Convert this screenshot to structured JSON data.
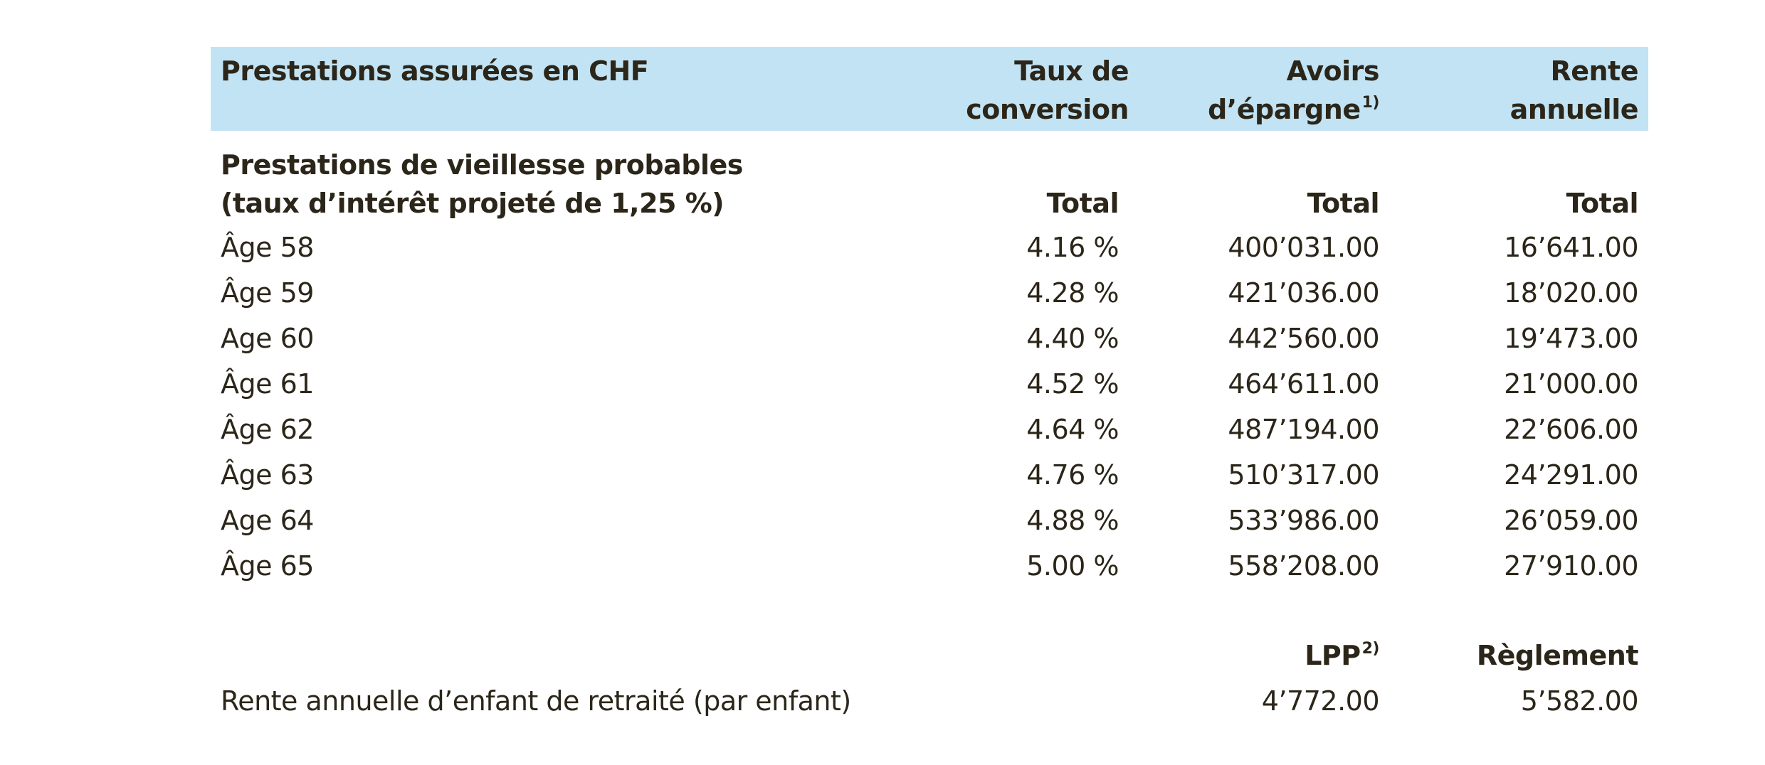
{
  "header": {
    "desc": "Prestations assurées en CHF",
    "rate_line1": "Taux de",
    "rate_line2": "conversion",
    "avoirs_line1": "Avoirs",
    "avoirs_line2": "d’épargne",
    "avoirs_note": "1)",
    "rente_line1": "Rente",
    "rente_line2": "annuelle"
  },
  "section": {
    "title_line1": "Prestations de vieillesse probables",
    "title_line2": "(taux d’intérêt projeté de 1,25 %)",
    "rate_total": "Total",
    "avoirs_total": "Total",
    "rente_total": "Total"
  },
  "rows": [
    {
      "age": "Âge 58",
      "rate": "4.16 %",
      "avoirs": "400’031.00",
      "rente": "16’641.00"
    },
    {
      "age": "Âge 59",
      "rate": "4.28 %",
      "avoirs": "421’036.00",
      "rente": "18’020.00"
    },
    {
      "age": "Age 60",
      "rate": "4.40 %",
      "avoirs": "442’560.00",
      "rente": "19’473.00"
    },
    {
      "age": "Âge 61",
      "rate": "4.52 %",
      "avoirs": "464’611.00",
      "rente": "21’000.00"
    },
    {
      "age": "Âge 62",
      "rate": "4.64 %",
      "avoirs": "487’194.00",
      "rente": "22’606.00"
    },
    {
      "age": "Âge 63",
      "rate": "4.76 %",
      "avoirs": "510’317.00",
      "rente": "24’291.00"
    },
    {
      "age": "Age 64",
      "rate": "4.88 %",
      "avoirs": "533’986.00",
      "rente": "26’059.00"
    },
    {
      "age": "Âge 65",
      "rate": "5.00 %",
      "avoirs": "558’208.00",
      "rente": "27’910.00"
    }
  ],
  "child": {
    "lpp_label": "LPP",
    "lpp_note": "2)",
    "reglement_label": "Règlement",
    "desc": "Rente annuelle d’enfant de retraité (par enfant)",
    "lpp_value": "4’772.00",
    "reglement_value": "5’582.00"
  }
}
